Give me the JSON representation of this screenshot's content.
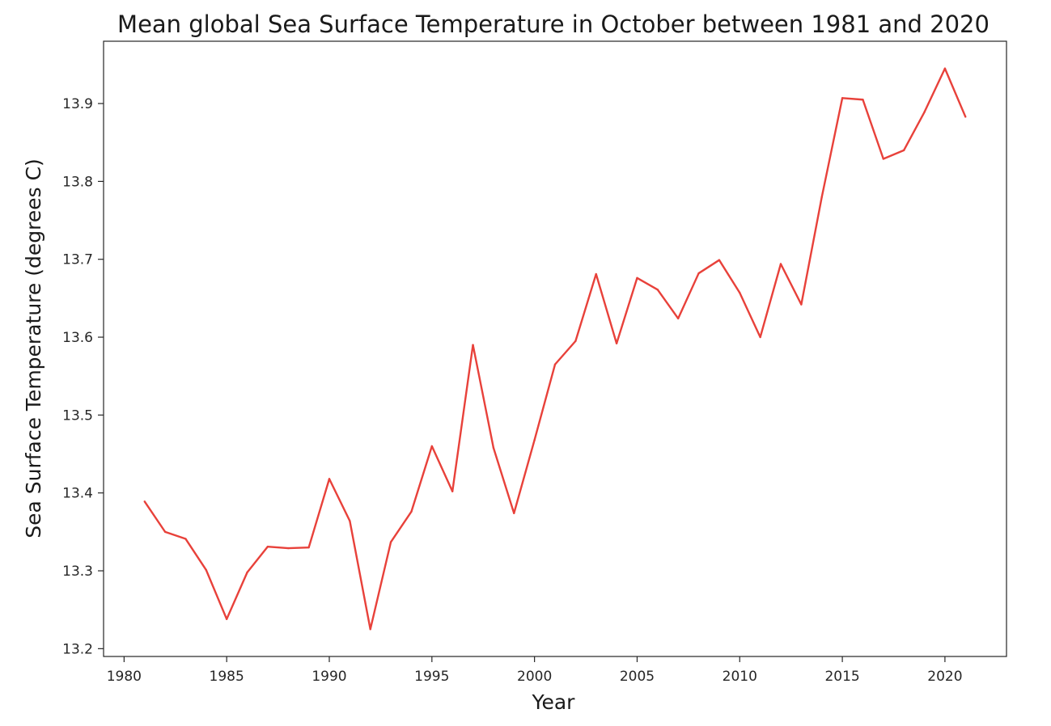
{
  "chart_data": {
    "type": "line",
    "title": "Mean global Sea Surface Temperature in October between 1981 and 2020",
    "xlabel": "Year",
    "ylabel": "Sea Surface Temperature (degrees C)",
    "xlim": [
      1979,
      2023
    ],
    "ylim": [
      13.19,
      13.98
    ],
    "xticks": [
      1980,
      1985,
      1990,
      1995,
      2000,
      2005,
      2010,
      2015,
      2020
    ],
    "yticks": [
      13.2,
      13.3,
      13.4,
      13.5,
      13.6,
      13.7,
      13.8,
      13.9
    ],
    "xtick_labels": [
      "1980",
      "1985",
      "1990",
      "1995",
      "2000",
      "2005",
      "2010",
      "2015",
      "2020"
    ],
    "ytick_labels": [
      "13.2",
      "13.3",
      "13.4",
      "13.5",
      "13.6",
      "13.7",
      "13.8",
      "13.9"
    ],
    "grid": false,
    "legend": "none",
    "series": [
      {
        "color": "#e8413a",
        "x": [
          1981,
          1982,
          1983,
          1984,
          1985,
          1986,
          1987,
          1988,
          1989,
          1990,
          1991,
          1992,
          1993,
          1994,
          1995,
          1996,
          1997,
          1998,
          1999,
          2000,
          2001,
          2002,
          2003,
          2004,
          2005,
          2006,
          2007,
          2008,
          2009,
          2010,
          2011,
          2012,
          2013,
          2014,
          2015,
          2016,
          2017,
          2018,
          2019,
          2020,
          2021
        ],
        "values": [
          13.389,
          13.35,
          13.341,
          13.301,
          13.238,
          13.298,
          13.331,
          13.329,
          13.33,
          13.418,
          13.364,
          13.225,
          13.337,
          13.376,
          13.46,
          13.402,
          13.59,
          13.458,
          13.374,
          13.468,
          13.565,
          13.595,
          13.681,
          13.592,
          13.676,
          13.661,
          13.624,
          13.682,
          13.699,
          13.657,
          13.6,
          13.694,
          13.642,
          13.78,
          13.907,
          13.905,
          13.829,
          13.84,
          13.889,
          13.945,
          13.883
        ]
      }
    ]
  }
}
